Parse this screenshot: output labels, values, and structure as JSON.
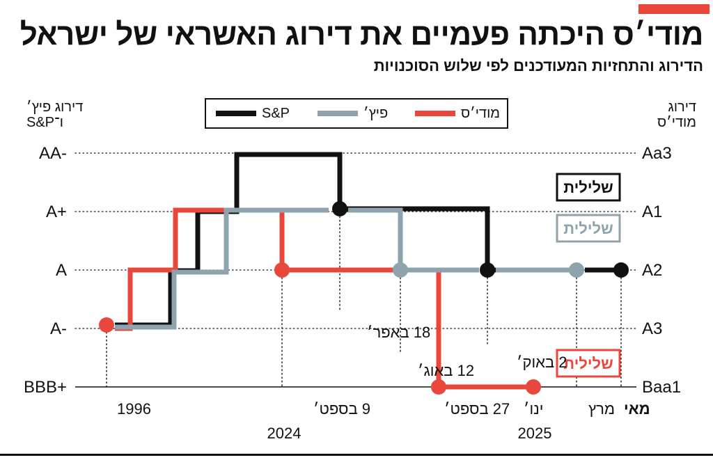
{
  "header": {
    "title": "מודי׳ס היכתה פעמיים את דירוג האשראי של ישראל",
    "subtitle": "הדירוג והתחזיות המעודכנים לפי שלוש הסוכנויות",
    "accent_color": "#e9463c"
  },
  "axis_titles": {
    "left": "דירוג פיץ׳\nו־S&P",
    "right": "דירוג\nמודי׳ס"
  },
  "legend": [
    {
      "name": "S&P",
      "color": "#111111"
    },
    {
      "name": "פיץ׳",
      "color": "#8fa3ae"
    },
    {
      "name": "מודי׳ס",
      "color": "#e9463c"
    }
  ],
  "chart_data": {
    "type": "line",
    "step": true,
    "y_levels_left": [
      "BBB+",
      "A-",
      "A",
      "A+",
      "AA-"
    ],
    "y_levels_right": [
      "Baa1",
      "A3",
      "A2",
      "A1",
      "Aa3"
    ],
    "grid": "dotted",
    "series": [
      {
        "name": "S&P",
        "color": "#111111",
        "steps": [
          [
            0,
            1
          ],
          [
            1,
            1
          ],
          [
            1,
            2
          ],
          [
            2,
            2
          ],
          [
            2,
            3
          ],
          [
            3,
            3
          ],
          [
            3,
            4
          ],
          [
            4,
            4
          ],
          [
            4,
            3
          ],
          [
            5,
            3
          ],
          [
            5,
            2
          ],
          [
            6,
            2
          ]
        ],
        "markers": [
          [
            4,
            3
          ],
          [
            5,
            2
          ],
          [
            6,
            2
          ]
        ]
      },
      {
        "name": "פיץ׳",
        "color": "#8fa3ae",
        "steps": [
          [
            0,
            1
          ],
          [
            1,
            1
          ],
          [
            1,
            2
          ],
          [
            2,
            2
          ],
          [
            2,
            3
          ],
          [
            3,
            3
          ],
          [
            3,
            2
          ],
          [
            4,
            2
          ],
          [
            4,
            2
          ]
        ],
        "markers": [
          [
            3,
            2
          ],
          [
            4,
            2
          ]
        ]
      },
      {
        "name": "מודי׳ס",
        "color": "#e9463c",
        "steps": [
          [
            0,
            1
          ],
          [
            0.5,
            1
          ],
          [
            0.5,
            2
          ],
          [
            1,
            2
          ],
          [
            1,
            3
          ],
          [
            2,
            3
          ],
          [
            2,
            2
          ],
          [
            3,
            2
          ],
          [
            3,
            0
          ],
          [
            4,
            0
          ]
        ],
        "markers": [
          [
            0,
            1
          ],
          [
            2,
            2
          ],
          [
            3,
            0
          ],
          [
            4,
            0
          ]
        ]
      }
    ],
    "outlooks": [
      {
        "agency": "S&P",
        "label": "שלילית",
        "color": "#111111"
      },
      {
        "agency": "פיץ׳",
        "label": "שלילית",
        "color": "#8fa3ae"
      },
      {
        "agency": "מודי׳ס",
        "label": "שלילית",
        "color": "#e9463c"
      }
    ],
    "x_labels": [
      {
        "text": "1996",
        "bold": false
      },
      {
        "text": "9 בספט׳",
        "bold": false
      },
      {
        "text": "27 בספט׳",
        "bold": false
      },
      {
        "text": "ינו׳",
        "bold": false
      },
      {
        "text": "מרץ",
        "bold": false
      },
      {
        "text": "מאי",
        "bold": true
      }
    ],
    "year_labels": [
      "2024",
      "2025"
    ],
    "event_labels": [
      "18 באפר׳",
      "12 באוג׳",
      "2 באוק׳"
    ]
  }
}
